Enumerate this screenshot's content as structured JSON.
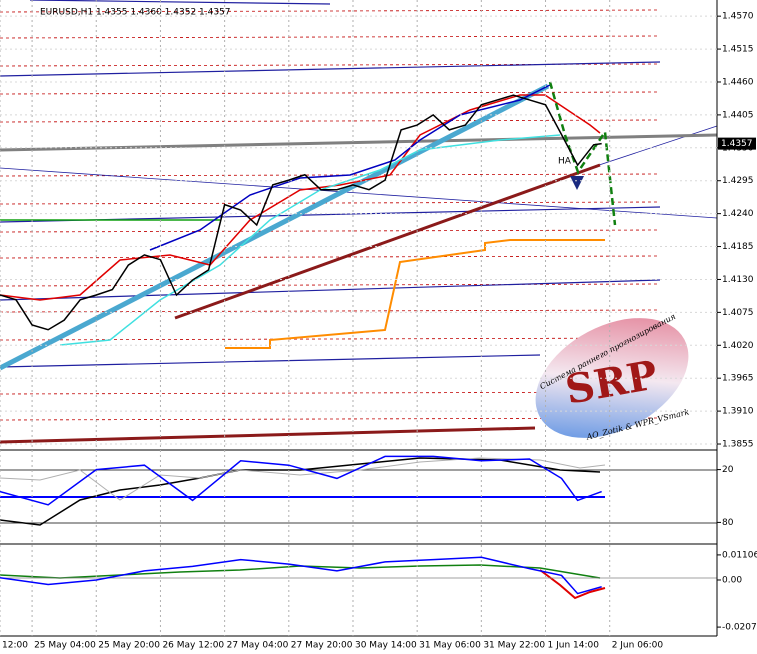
{
  "chart_data": [
    {
      "type": "line",
      "title": "EURUSD,H1  1.4355 1.4360 1.4352 1.4357",
      "color": "#000000",
      "grid": true,
      "x": [
        0,
        4,
        8,
        12,
        16,
        20,
        24,
        28,
        32,
        36,
        40,
        44,
        48,
        52,
        56,
        60,
        64,
        68,
        72,
        76,
        80,
        84,
        88,
        92,
        96,
        100,
        104,
        108,
        112,
        116,
        120,
        124,
        128,
        132,
        136,
        140,
        144,
        148,
        150
      ],
      "values": [
        1.4104,
        1.4096,
        1.4054,
        1.4046,
        1.4062,
        1.4096,
        1.4104,
        1.4113,
        1.4154,
        1.4171,
        1.4163,
        1.4104,
        1.4129,
        1.4146,
        1.4255,
        1.4246,
        1.4221,
        1.4288,
        1.4296,
        1.4305,
        1.428,
        1.428,
        1.4288,
        1.428,
        1.4296,
        1.438,
        1.4388,
        1.4405,
        1.438,
        1.4388,
        1.4422,
        1.443,
        1.4438,
        1.443,
        1.4422,
        1.4372,
        1.4321,
        1.4355,
        1.4357
      ],
      "last_label": "1.4357",
      "xlim": [
        0,
        178.75
      ],
      "xticks": [
        {
          "value": 0,
          "label": "12:00"
        },
        {
          "value": 8,
          "label": "25 May 04:00"
        },
        {
          "value": 24,
          "label": "25 May 20:00"
        },
        {
          "value": 40,
          "label": "26 May 12:00"
        },
        {
          "value": 56,
          "label": "27 May 04:00"
        },
        {
          "value": 72,
          "label": "27 May 20:00"
        },
        {
          "value": 88,
          "label": "30 May 14:00"
        },
        {
          "value": 104,
          "label": "31 May 06:00"
        },
        {
          "value": 120,
          "label": "31 May 22:00"
        },
        {
          "value": 136,
          "label": "1 Jun 14:00"
        },
        {
          "value": 152,
          "label": "2 Jun 06:00"
        }
      ],
      "ylim": [
        1.3845,
        1.4597
      ],
      "yticks": [
        {
          "value": 1.457,
          "label": "1.4570"
        },
        {
          "value": 1.4515,
          "label": "1.4515"
        },
        {
          "value": 1.446,
          "label": "1.4460"
        },
        {
          "value": 1.4405,
          "label": "1.4405"
        },
        {
          "value": 1.435,
          "label": "1.4350"
        },
        {
          "value": 1.4295,
          "label": "1.4295"
        },
        {
          "value": 1.424,
          "label": "1.4240"
        },
        {
          "value": 1.4185,
          "label": "1.4185"
        },
        {
          "value": 1.413,
          "label": "1.4130"
        },
        {
          "value": 1.4075,
          "label": "1.4075"
        },
        {
          "value": 1.402,
          "label": "1.4020"
        },
        {
          "value": 1.3965,
          "label": "1.3965"
        },
        {
          "value": 1.391,
          "label": "1.3910"
        },
        {
          "value": 1.3855,
          "label": "1.3855"
        }
      ],
      "annotations": [
        "HA",
        "SRP",
        "Система раннего прогнозирования",
        "AO_Zotik & WPR_VSmark"
      ]
    },
    {
      "type": "line",
      "color": "#0000ff",
      "x": [
        0,
        12,
        24,
        36,
        48,
        60,
        72,
        84,
        96,
        108,
        120,
        132,
        140,
        144,
        150
      ],
      "values": [
        45,
        60,
        20,
        15,
        55,
        10,
        15,
        30,
        5,
        5,
        10,
        8,
        30,
        55,
        45
      ],
      "ylim": [
        100,
        0
      ],
      "yticks": [
        20,
        80
      ]
    },
    {
      "type": "line",
      "color": "#0000ff",
      "x": [
        0,
        12,
        24,
        36,
        48,
        60,
        72,
        84,
        96,
        108,
        120,
        132,
        140,
        144,
        150
      ],
      "values": [
        0.001,
        -0.002,
        0.0,
        0.004,
        0.006,
        0.009,
        0.007,
        0.004,
        0.008,
        0.009,
        0.01,
        0.005,
        0.002,
        -0.006,
        -0.003
      ],
      "ylim": [
        -0.02471,
        0.01499
      ],
      "yticks": [
        0.01106,
        {
          "value": 0,
          "label": "0.00"
        },
        -0.02078
      ]
    }
  ]
}
